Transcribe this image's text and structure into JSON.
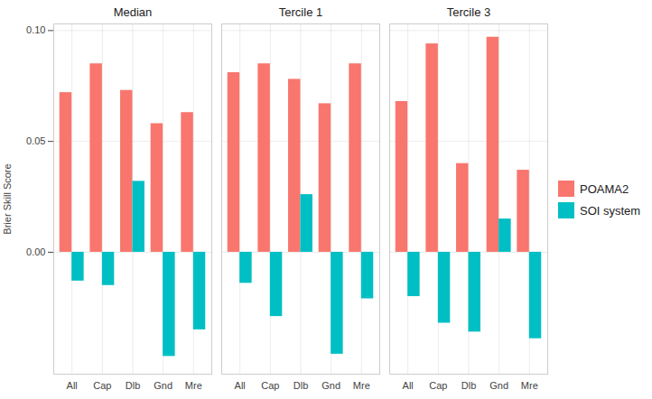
{
  "chart_data": [
    {
      "type": "bar",
      "title": "Median",
      "y_label": "Brier Skill Score",
      "categories": [
        "All",
        "Cap",
        "Dlb",
        "Gnd",
        "Mre"
      ],
      "series": [
        {
          "name": "POAMA2",
          "color": "#F8766D",
          "values": [
            0.072,
            0.085,
            0.073,
            0.058,
            0.063
          ]
        },
        {
          "name": "SOI system",
          "color": "#00BFC4",
          "values": [
            -0.013,
            -0.015,
            0.032,
            -0.047,
            -0.035
          ]
        }
      ],
      "ylim": [
        -0.055,
        0.103
      ],
      "yticks": [
        {
          "value": 0,
          "label": "0.00"
        },
        {
          "value": 0.05,
          "label": "0.05"
        },
        {
          "value": 0.1,
          "label": "0.10"
        }
      ],
      "grid": true,
      "legend": "right"
    },
    {
      "type": "bar",
      "title": "Tercile 1",
      "categories": [
        "All",
        "Cap",
        "Dlb",
        "Gnd",
        "Mre"
      ],
      "series": [
        {
          "name": "POAMA2",
          "color": "#F8766D",
          "values": [
            0.081,
            0.085,
            0.078,
            0.067,
            0.085
          ]
        },
        {
          "name": "SOI system",
          "color": "#00BFC4",
          "values": [
            -0.014,
            -0.029,
            0.026,
            -0.046,
            -0.021
          ]
        }
      ],
      "ylim": [
        -0.055,
        0.103
      ],
      "yticks": [
        {
          "value": 0,
          "label": "0.00"
        },
        {
          "value": 0.05,
          "label": "0.05"
        },
        {
          "value": 0.1,
          "label": "0.10"
        }
      ],
      "grid": true
    },
    {
      "type": "bar",
      "title": "Tercile 3",
      "categories": [
        "All",
        "Cap",
        "Dlb",
        "Gnd",
        "Mre"
      ],
      "series": [
        {
          "name": "POAMA2",
          "color": "#F8766D",
          "values": [
            0.068,
            0.094,
            0.04,
            0.097,
            0.037
          ]
        },
        {
          "name": "SOI system",
          "color": "#00BFC4",
          "values": [
            -0.02,
            -0.032,
            -0.036,
            0.015,
            -0.039
          ]
        }
      ],
      "ylim": [
        -0.055,
        0.103
      ],
      "yticks": [
        {
          "value": 0,
          "label": "0.00"
        },
        {
          "value": 0.05,
          "label": "0.05"
        },
        {
          "value": 0.1,
          "label": "0.10"
        }
      ],
      "grid": true
    }
  ]
}
